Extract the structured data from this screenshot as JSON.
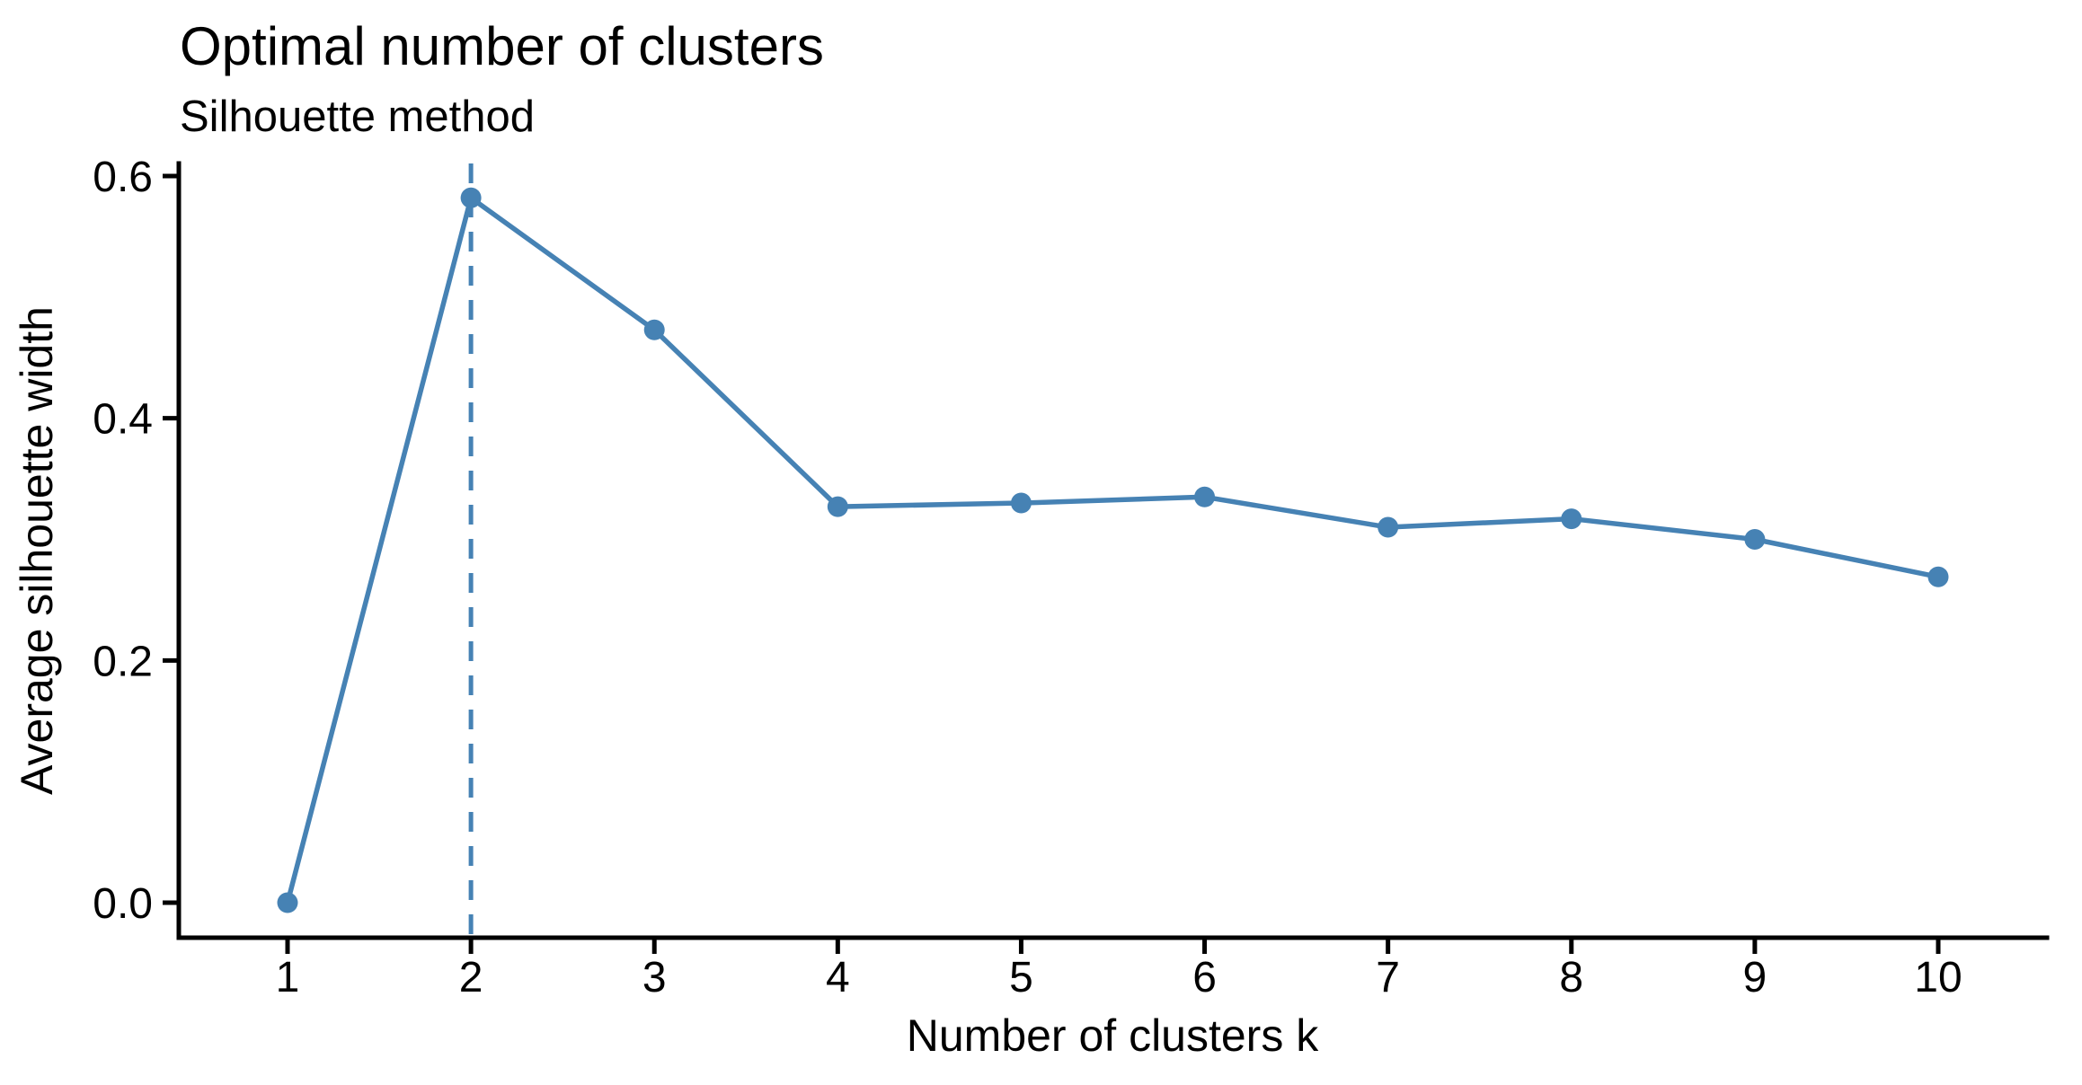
{
  "title": "Optimal number of clusters",
  "subtitle": "Silhouette method",
  "chart_data": {
    "type": "line",
    "title": "Optimal number of clusters",
    "subtitle": "Silhouette method",
    "xlabel": "Number of clusters k",
    "ylabel": "Average silhouette width",
    "x": [
      1,
      2,
      3,
      4,
      5,
      6,
      7,
      8,
      9,
      10
    ],
    "y": [
      0.0,
      0.582,
      0.473,
      0.327,
      0.33,
      0.335,
      0.31,
      0.317,
      0.3,
      0.269
    ],
    "series_name": "average-silhouette-width",
    "xticks": [
      1,
      2,
      3,
      4,
      5,
      6,
      7,
      8,
      9,
      10
    ],
    "xtick_labels": [
      "1",
      "2",
      "3",
      "4",
      "5",
      "6",
      "7",
      "8",
      "9",
      "10"
    ],
    "yticks": [
      0.0,
      0.2,
      0.4,
      0.6
    ],
    "ytick_labels": [
      "0.0",
      "0.2",
      "0.4",
      "0.6"
    ],
    "ylim": [
      0.0,
      0.6
    ],
    "xlim": [
      1,
      10
    ],
    "grid": false,
    "legend": "none",
    "optimal_k": 2,
    "vline_x": 2,
    "vline_style": "dashed",
    "line_color": "#4682B4",
    "point_color": "#4682B4",
    "axis_color": "#000000"
  }
}
